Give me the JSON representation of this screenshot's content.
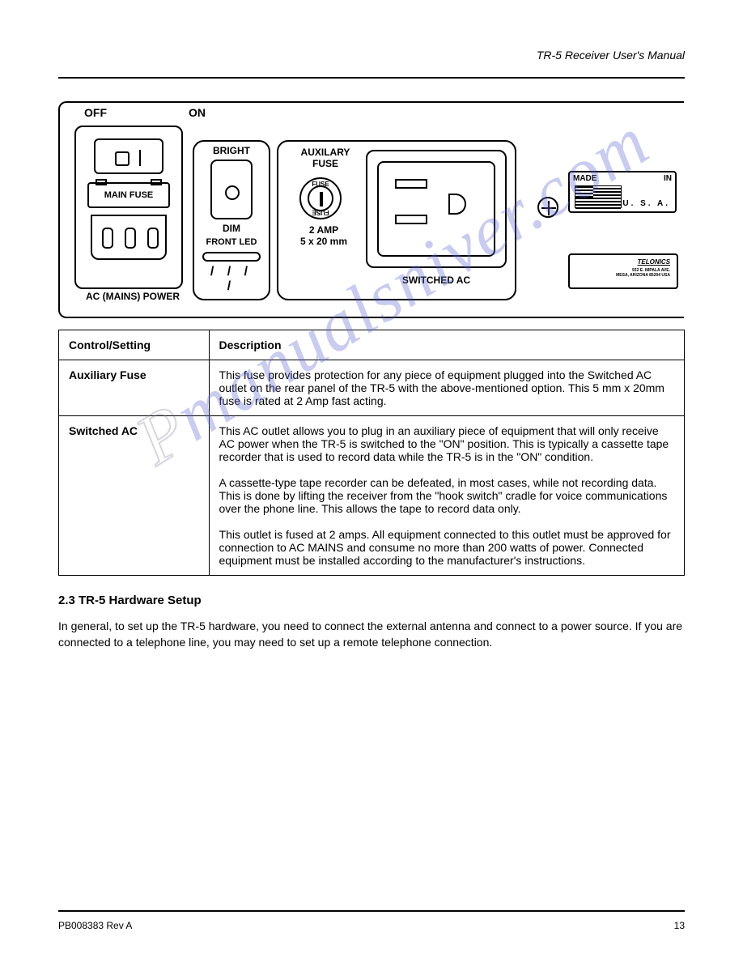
{
  "header": {
    "right": "TR-5 Receiver User's Manual"
  },
  "panel": {
    "off": "OFF",
    "on": "ON",
    "main_fuse": "MAIN FUSE",
    "ac_mains": "AC (MAINS) POWER",
    "bright": "BRIGHT",
    "dim": "DIM",
    "front_led": "FRONT LED",
    "led_ticks": "/ / / /",
    "aux_fuse_l1": "AUXILARY",
    "aux_fuse_l2": "FUSE",
    "fuse_top": "FUSE",
    "fuse_bot": "FUSE",
    "amp_l1": "2 AMP",
    "amp_l2": "5 x 20 mm",
    "switched_ac": "SWITCHED AC",
    "made": "MADE",
    "in": "IN",
    "usa": "U. S. A.",
    "telonics": "TELONICS",
    "telonics_addr1": "932 E. IMPALA AVE.",
    "telonics_addr2": "MESA, ARIZONA 85204 USA"
  },
  "table": {
    "columns": [
      "Control/Setting",
      "Description"
    ],
    "rows": [
      {
        "label": "Auxiliary Fuse",
        "desc": "This fuse provides protection for any piece of equipment plugged into the Switched AC outlet on the rear panel of the TR-5 with the above-mentioned option. This 5 mm x 20mm fuse is rated at 2 Amp fast acting."
      },
      {
        "label": "Switched AC",
        "desc": "This AC outlet allows you to plug in an auxiliary piece of equipment that will only receive AC power when the TR-5 is switched to the \"ON\" position. This is typically a cassette tape recorder that is used to record data while the TR-5 is in the \"ON\" condition.\n\nA cassette-type tape recorder can be defeated, in most cases, while not recording data. This is done by lifting the receiver from the \"hook switch\" cradle for voice communications over the phone line. This allows the tape to record data only.\n\nThis outlet is fused at 2 amps. All equipment connected to this outlet must be approved for connection to AC MAINS and consume no more than 200 watts of power. Connected equipment must be installed according to the manufacturer's instructions."
      }
    ]
  },
  "below": {
    "title": "2.3 TR-5 Hardware Setup",
    "para": "In general, to set up the TR-5 hardware, you need to connect the external antenna and connect to a power source. If you are connected to a telephone line, you may need to set up a remote telephone connection."
  },
  "footer": {
    "doc": "PB008383 Rev A",
    "page": "13"
  },
  "watermark": {
    "p": "P",
    "rest": "manualsniver.com"
  },
  "colors": {
    "ink": "#000000",
    "watermark": "rgba(100,110,210,0.35)"
  }
}
